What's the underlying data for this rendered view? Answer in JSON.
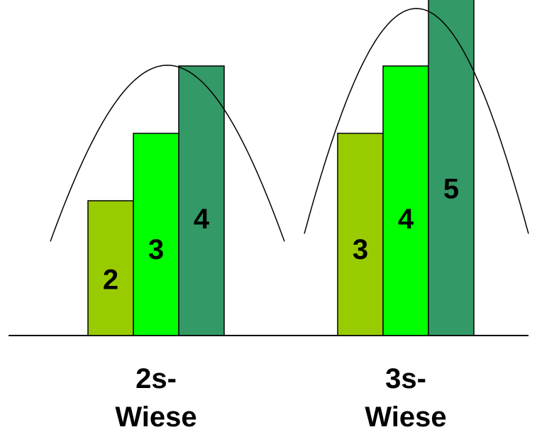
{
  "chart_data": {
    "type": "bar",
    "groups": [
      {
        "label_line1": "2s-",
        "label_line2": "Wiese",
        "values": [
          2,
          3,
          4
        ],
        "value_labels": [
          "2",
          "3",
          "4"
        ]
      },
      {
        "label_line1": "3s-",
        "label_line2": "Wiese",
        "values": [
          3,
          4,
          5
        ],
        "value_labels": [
          "3",
          "4",
          "5"
        ]
      }
    ],
    "series_colors": [
      "#99cc00",
      "#00ff00",
      "#339966"
    ],
    "ylim": [
      0,
      5.4
    ],
    "grid": false,
    "legend": "none",
    "overlay": "bell-curve-per-group"
  }
}
